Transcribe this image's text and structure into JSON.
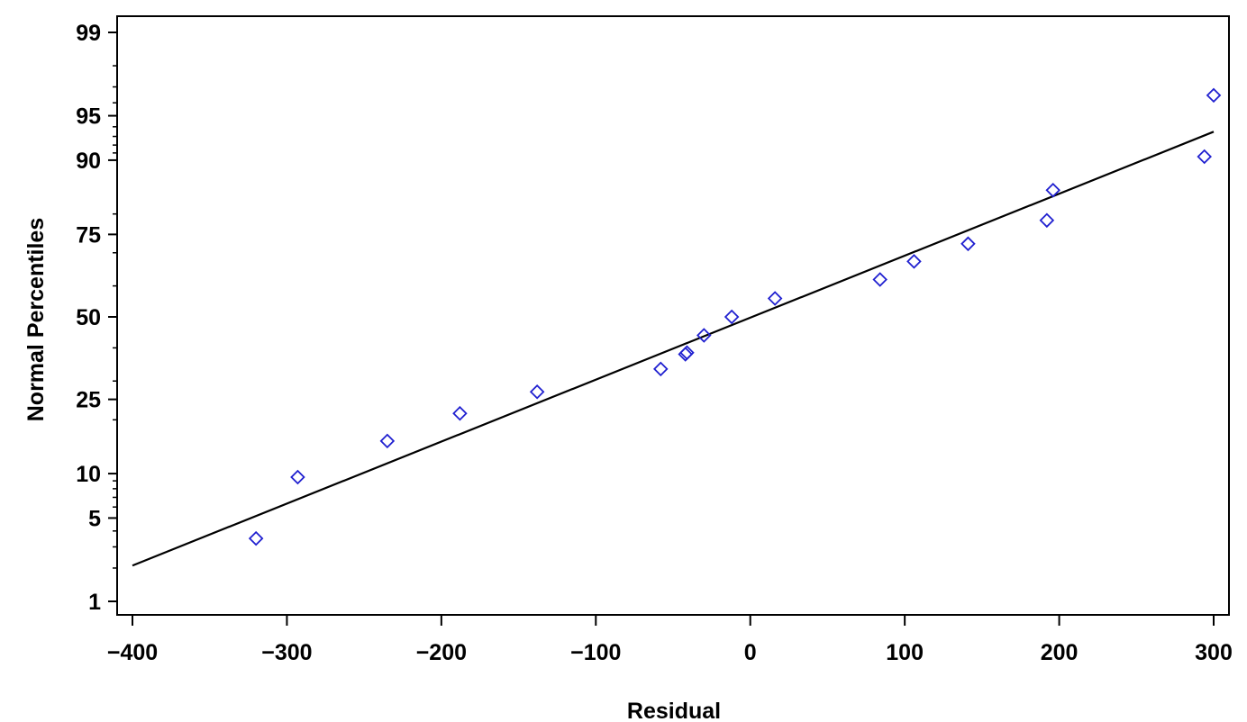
{
  "chart_data": {
    "type": "scatter",
    "title": "",
    "xlabel": "Residual",
    "ylabel": "Normal  Percentiles",
    "xlim": [
      -400,
      300
    ],
    "x_ticks": [
      -400,
      -300,
      -200,
      -100,
      0,
      100,
      200,
      300
    ],
    "x_tick_labels": [
      "−400",
      "−300",
      "−200",
      "−100",
      "0",
      "100",
      "200",
      "300"
    ],
    "y_scale": "normal-probability",
    "ylim": [
      1,
      99
    ],
    "y_ticks": [
      1,
      5,
      10,
      25,
      50,
      75,
      90,
      95,
      99
    ],
    "y_tick_labels": [
      "1",
      "5",
      "10",
      "25",
      "50",
      "75",
      "90",
      "95",
      "99"
    ],
    "y_minor_ticks": [
      2,
      3,
      4,
      6,
      7,
      8,
      9,
      20,
      30,
      40,
      60,
      70,
      80,
      91,
      92,
      93,
      94,
      96,
      97,
      98
    ],
    "grid": false,
    "legend": "none",
    "marker_color": "#2020d0",
    "line_color": "#000000",
    "series": [
      {
        "marker": "diamond",
        "x": [
          -320,
          -293,
          -235,
          -188,
          -138,
          -58,
          -42,
          -41,
          -30,
          -12,
          16,
          84,
          106,
          141,
          192,
          196,
          294,
          300
        ],
        "y": [
          3.5,
          9.5,
          15.5,
          21.5,
          27,
          33.5,
          38,
          38.5,
          44,
          50,
          56,
          62,
          67.5,
          72.5,
          78.5,
          85,
          90.5,
          96.5
        ]
      }
    ],
    "fit_line": {
      "x": [
        -400,
        300
      ],
      "y": [
        2.1,
        93.5
      ]
    }
  }
}
